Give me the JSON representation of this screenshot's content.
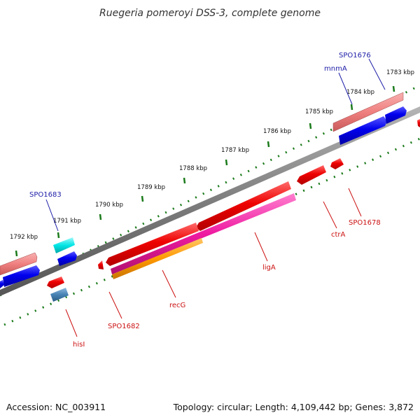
{
  "title": "Ruegeria pomeroyi DSS-3, complete genome",
  "footer": {
    "accession": "Accession: NC_003911",
    "summary": "Topology: circular; Length: 4,109,442 bp; Genes: 3,872"
  },
  "ticks": [
    "1783 kbp",
    "1784 kbp",
    "1785 kbp",
    "1786 kbp",
    "1787 kbp",
    "1788 kbp",
    "1789 kbp",
    "1790 kbp",
    "1791 kbp",
    "1792 kbp"
  ],
  "genes": {
    "forward": [
      "SPO1676",
      "mnmA",
      "SPO1683"
    ],
    "reverse": [
      "SPO1678",
      "ctrA",
      "ligA",
      "recG",
      "SPO1682",
      "hisI"
    ]
  },
  "colors": {
    "backbone": "#808080",
    "tick": "#1a7a1a",
    "forward_label": "#1c1ca8",
    "reverse_label": "#cc1111",
    "forward_cds": "#0000ee",
    "reverse_cds": "#ee0000",
    "rrna": "#f08080",
    "trna": "#00e5e5",
    "magenta": "#ee1aa0",
    "orange": "#ff9900",
    "steel": "#4682b4"
  }
}
